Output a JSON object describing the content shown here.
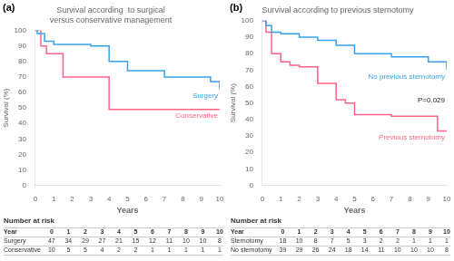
{
  "chart_data": [
    {
      "type": "step",
      "panel_label": "(a)",
      "title": "Survival according  to surgical versus conservative management",
      "xlabel": "Years",
      "ylabel": "Survival (%)",
      "xlim": [
        0,
        10
      ],
      "ylim": [
        0,
        100
      ],
      "xticks": [
        0,
        1,
        2,
        3,
        4,
        5,
        6,
        7,
        8,
        9,
        10
      ],
      "yticks": [
        0,
        10,
        20,
        30,
        40,
        50,
        60,
        70,
        80,
        90,
        100
      ],
      "grid": false,
      "series": [
        {
          "name": "Surgery",
          "x": [
            0,
            0.1,
            0.5,
            1.0,
            2.0,
            3.0,
            3.5,
            4.0,
            4.5,
            5.0,
            6.0,
            7.0,
            9.0,
            9.5,
            10.0
          ],
          "values": [
            100,
            98,
            93,
            91,
            91,
            90,
            90,
            80,
            80,
            74,
            74,
            70,
            70,
            67,
            62
          ]
        },
        {
          "name": "Conservative",
          "x": [
            0,
            0.3,
            0.6,
            1.0,
            1.5,
            2.5,
            3.5,
            4.0,
            4.5,
            10.0
          ],
          "values": [
            100,
            90,
            85,
            85,
            70,
            70,
            70,
            49,
            49,
            49
          ]
        }
      ],
      "risk_table": {
        "title": "Number at risk",
        "rows": [
          {
            "label": "Year",
            "values": [
              0,
              1,
              2,
              3,
              4,
              5,
              6,
              7,
              8,
              9,
              10
            ]
          },
          {
            "label": "Surgery",
            "values": [
              47,
              34,
              29,
              27,
              21,
              15,
              12,
              11,
              10,
              10,
              8
            ]
          },
          {
            "label": "Conservative",
            "values": [
              10,
              5,
              5,
              4,
              2,
              2,
              1,
              1,
              1,
              1,
              1
            ]
          }
        ]
      }
    },
    {
      "type": "step",
      "panel_label": "(b)",
      "title": "Survival according to previous sternotomy",
      "xlabel": "Years",
      "ylabel": "Survival (%)",
      "xlim": [
        0,
        10
      ],
      "ylim": [
        0,
        100
      ],
      "xticks": [
        0,
        1,
        2,
        3,
        4,
        5,
        6,
        7,
        8,
        9,
        10
      ],
      "yticks": [
        0,
        10,
        20,
        30,
        40,
        50,
        60,
        70,
        80,
        90,
        100
      ],
      "grid": false,
      "annotations": [
        "P=0.029"
      ],
      "series": [
        {
          "name": "No previous sternotomy",
          "x": [
            0,
            0.2,
            0.5,
            1.0,
            2.0,
            3.0,
            4.0,
            4.5,
            5.0,
            6.0,
            7.0,
            8.0,
            9.0,
            9.5,
            10.0
          ],
          "values": [
            100,
            97,
            93,
            92,
            90,
            88,
            85,
            85,
            80,
            80,
            78,
            78,
            75,
            75,
            70
          ]
        },
        {
          "name": "Previous sternotomy",
          "x": [
            0,
            0.2,
            0.5,
            1.0,
            1.5,
            2.0,
            3.0,
            4.0,
            4.5,
            5.0,
            6.0,
            6.5,
            7.0,
            9.0,
            9.5,
            10.0
          ],
          "values": [
            100,
            93,
            80,
            75,
            73,
            72,
            62,
            52,
            50,
            43,
            43,
            43,
            42,
            42,
            33,
            33
          ]
        }
      ],
      "risk_table": {
        "title": "Number at risk",
        "rows": [
          {
            "label": "Year",
            "values": [
              0,
              1,
              2,
              3,
              4,
              5,
              6,
              7,
              8,
              9,
              10
            ]
          },
          {
            "label": "Sternotomy",
            "values": [
              18,
              10,
              8,
              7,
              5,
              3,
              2,
              2,
              1,
              1,
              1
            ]
          },
          {
            "label": "No sternotomy",
            "values": [
              39,
              29,
              26,
              24,
              18,
              14,
              11,
              10,
              10,
              10,
              8
            ]
          }
        ]
      }
    }
  ]
}
